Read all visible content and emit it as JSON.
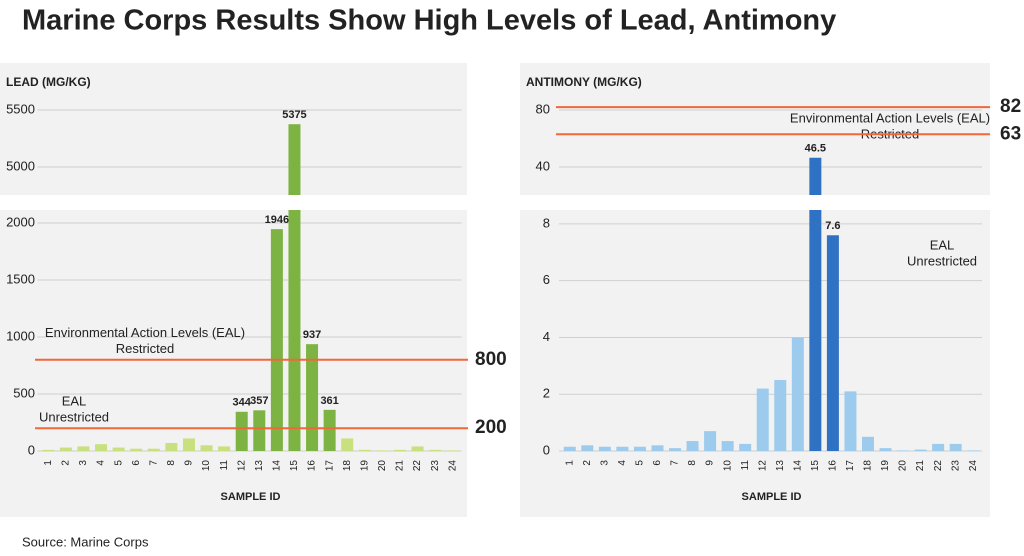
{
  "title": "Marine Corps Results Show High Levels of Lead, Antimony",
  "source": "Source: Marine Corps",
  "chart_data": [
    {
      "type": "bar",
      "axis_title": "LEAD (MG/KG)",
      "x_label": "SAMPLE ID",
      "categories": [
        "1",
        "2",
        "3",
        "4",
        "5",
        "6",
        "7",
        "8",
        "9",
        "10",
        "11",
        "12",
        "13",
        "14",
        "15",
        "16",
        "17",
        "18",
        "19",
        "20",
        "21",
        "22",
        "23",
        "24"
      ],
      "values": [
        10,
        30,
        40,
        60,
        30,
        20,
        20,
        70,
        110,
        50,
        40,
        344,
        357,
        1946,
        5375,
        937,
        361,
        110,
        10,
        5,
        10,
        40,
        10,
        5
      ],
      "colors": [
        "#c8e07e",
        "#c8e07e",
        "#c8e07e",
        "#c8e07e",
        "#c8e07e",
        "#c8e07e",
        "#c8e07e",
        "#c8e07e",
        "#c8e07e",
        "#c8e07e",
        "#c8e07e",
        "#7db342",
        "#7db342",
        "#7db342",
        "#7db342",
        "#7db342",
        "#7db342",
        "#c8e07e",
        "#c8e07e",
        "#c8e07e",
        "#c8e07e",
        "#c8e07e",
        "#c8e07e",
        "#c8e07e"
      ],
      "highlight_color": "#7db342",
      "y_segments": [
        {
          "ylim": [
            0,
            2114
          ],
          "yticks": [
            0,
            500,
            1000,
            1500,
            2000
          ]
        },
        {
          "ylim": [
            4754,
            5912
          ],
          "yticks": [
            5000,
            5500
          ]
        }
      ],
      "grid": true,
      "reference_lines": [
        {
          "value": 800,
          "color": "#f2673a",
          "label": [
            "Environmental Action Levels (EAL)",
            "Restricted"
          ]
        },
        {
          "value": 200,
          "color": "#f2673a",
          "label": [
            "EAL",
            "Unrestricted"
          ]
        }
      ]
    },
    {
      "type": "bar",
      "axis_title": "ANTIMONY (MG/KG)",
      "x_label": "SAMPLE ID",
      "categories": [
        "1",
        "2",
        "3",
        "4",
        "5",
        "6",
        "7",
        "8",
        "9",
        "10",
        "11",
        "12",
        "13",
        "14",
        "15",
        "16",
        "17",
        "18",
        "19",
        "20",
        "21",
        "22",
        "23",
        "24"
      ],
      "values": [
        0.15,
        0.2,
        0.15,
        0.15,
        0.15,
        0.2,
        0.1,
        0.35,
        0.7,
        0.35,
        0.25,
        2.2,
        2.5,
        4.0,
        46.5,
        7.6,
        2.1,
        0.5,
        0.1,
        0.02,
        0.05,
        0.25,
        0.25,
        0.02
      ],
      "colors": [
        "#9ccbee",
        "#9ccbee",
        "#9ccbee",
        "#9ccbee",
        "#9ccbee",
        "#9ccbee",
        "#9ccbee",
        "#9ccbee",
        "#9ccbee",
        "#9ccbee",
        "#9ccbee",
        "#9ccbee",
        "#9ccbee",
        "#9ccbee",
        "#2f72c4",
        "#2f72c4",
        "#9ccbee",
        "#9ccbee",
        "#9ccbee",
        "#9ccbee",
        "#9ccbee",
        "#9ccbee",
        "#9ccbee",
        "#9ccbee"
      ],
      "highlight_color": "#2f72c4",
      "y_segments": [
        {
          "ylim": [
            0,
            8.49
          ],
          "yticks": [
            0,
            2,
            4,
            6,
            8
          ]
        },
        {
          "ylim": [
            20.35,
            113
          ],
          "yticks": [
            40,
            80
          ]
        }
      ],
      "grid": true,
      "reference_lines": [
        {
          "value": 82,
          "color": "#f2673a",
          "label": [
            "Environmental Action Levels (EAL)",
            "Restricted"
          ]
        },
        {
          "value": 63,
          "color": "#f2673a",
          "label": [
            "EAL",
            "Unrestricted"
          ]
        }
      ]
    }
  ]
}
